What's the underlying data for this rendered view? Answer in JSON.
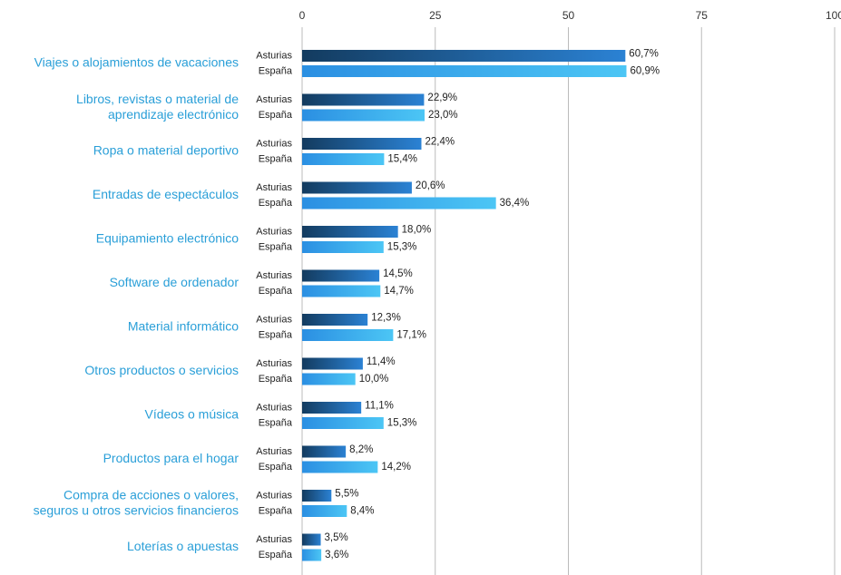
{
  "chart_data": {
    "type": "barh",
    "categories": [
      "Viajes o alojamientos de vacaciones",
      "Libros, revistas o material de\naprendizaje electrónico",
      "Ropa o material deportivo",
      "Entradas de espectáculos",
      "Equipamiento electrónico",
      "Software de ordenador",
      "Material informático",
      "Otros productos o servicios",
      "Vídeos o música",
      "Productos para el hogar",
      "Compra de acciones o valores,\nseguros u otros servicios financieros",
      "Loterías o apuestas"
    ],
    "series": [
      {
        "name": "Asturias",
        "color": "#2b82d4",
        "values": [
          60.7,
          22.9,
          22.4,
          20.6,
          18.0,
          14.5,
          12.3,
          11.4,
          11.1,
          8.2,
          5.5,
          3.5
        ],
        "value_labels": [
          "60,7%",
          "22,9%",
          "22,4%",
          "20,6%",
          "18,0%",
          "14,5%",
          "12,3%",
          "11,4%",
          "11,1%",
          "8,2%",
          "5,5%",
          "3,5%"
        ]
      },
      {
        "name": "España",
        "color": "#4cc6f5",
        "values": [
          60.9,
          23.0,
          15.4,
          36.4,
          15.3,
          14.7,
          17.1,
          10.0,
          15.3,
          14.2,
          8.4,
          3.6
        ],
        "value_labels": [
          "60,9%",
          "23,0%",
          "15,4%",
          "36,4%",
          "15,3%",
          "14,7%",
          "17,1%",
          "10,0%",
          "15,3%",
          "14,2%",
          "8,4%",
          "3,6%"
        ]
      }
    ],
    "xlim": [
      0,
      100
    ],
    "xticks": [
      0,
      25,
      50,
      75,
      100
    ],
    "grid": true
  }
}
